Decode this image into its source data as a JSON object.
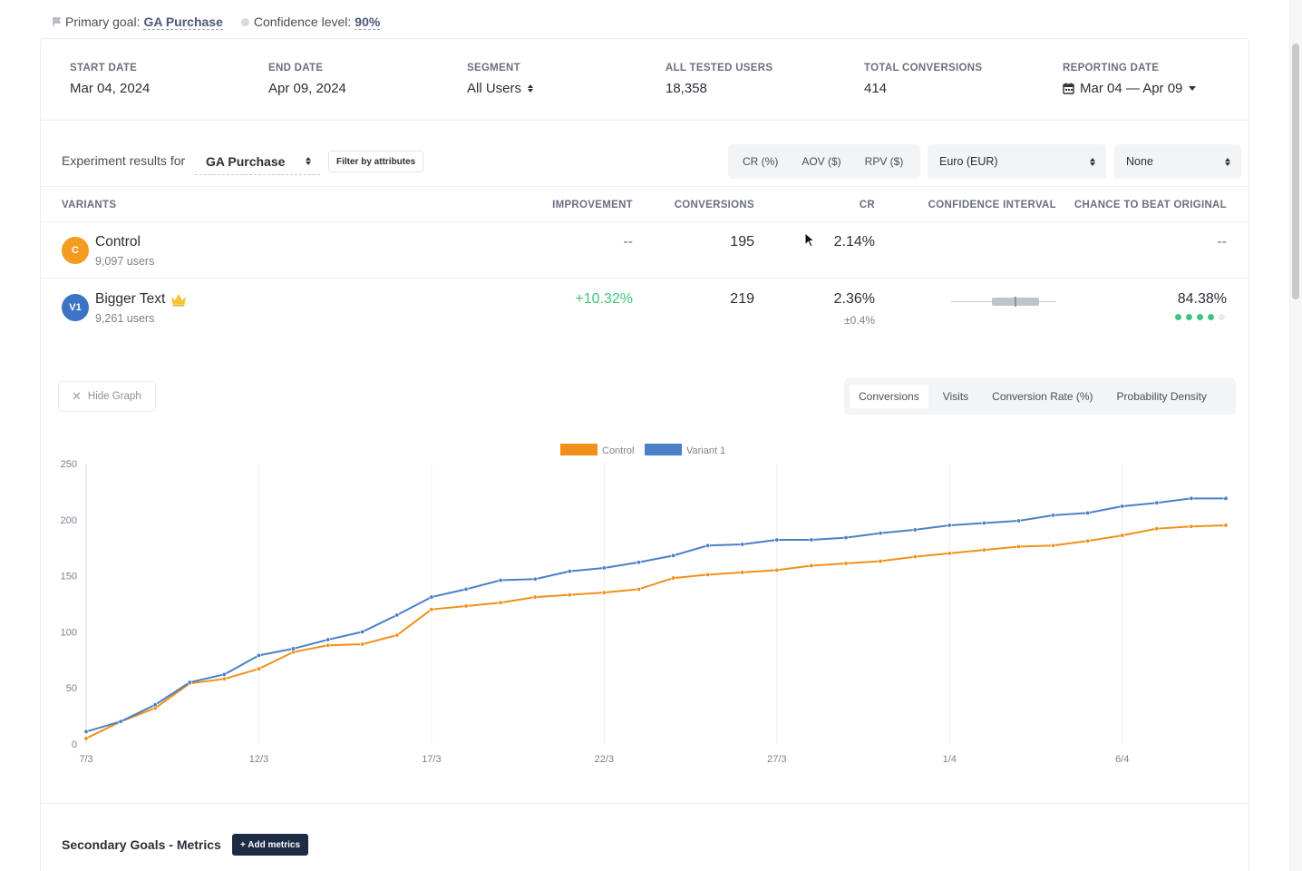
{
  "topbar": {
    "goal_label": "Primary goal:",
    "goal_value": "GA Purchase",
    "confidence_label": "Confidence level:",
    "confidence_value": "90%"
  },
  "summary": {
    "start_label": "START DATE",
    "start_value": "Mar 04, 2024",
    "end_label": "END DATE",
    "end_value": "Apr 09, 2024",
    "segment_label": "SEGMENT",
    "segment_value": "All Users",
    "users_label": "ALL TESTED USERS",
    "users_value": "18,358",
    "conv_label": "TOTAL CONVERSIONS",
    "conv_value": "414",
    "reporting_label": "REPORTING DATE",
    "reporting_value": "Mar 04 — Apr 09"
  },
  "filters": {
    "results_label": "Experiment results for",
    "goal_select": "GA Purchase",
    "filter_button": "Filter by attributes",
    "metric_tabs": [
      "CR (%)",
      "AOV ($)",
      "RPV ($)"
    ],
    "currency": "Euro (EUR)",
    "none_select": "None"
  },
  "table": {
    "headers": {
      "variants": "VARIANTS",
      "improvement": "IMPROVEMENT",
      "conversions": "CONVERSIONS",
      "cr": "CR",
      "ci": "CONFIDENCE INTERVAL",
      "chance": "CHANCE TO BEAT ORIGINAL"
    },
    "rows": [
      {
        "badge": "C",
        "name": "Control",
        "users": "9,097 users",
        "improvement": "--",
        "conversions": "195",
        "cr": "2.14%",
        "chance": "--",
        "badge_color": "#f39c1f"
      },
      {
        "badge": "V1",
        "name": "Bigger Text",
        "users": "9,261 users",
        "improvement": "+10.32%",
        "conversions": "219",
        "cr": "2.36%",
        "cr_ci": "±0.4%",
        "chance": "84.38%",
        "badge_color": "#3d73c4"
      }
    ]
  },
  "graph": {
    "hide_label": "Hide Graph",
    "tabs": [
      "Conversions",
      "Visits",
      "Conversion Rate (%)",
      "Probability Density"
    ],
    "active_tab": "Conversions"
  },
  "chart_data": {
    "type": "line",
    "title": "",
    "xlabel": "",
    "ylabel": "",
    "ylim": [
      0,
      250
    ],
    "yticks": [
      0,
      50,
      100,
      150,
      200,
      250
    ],
    "x_tick_labels": [
      "7/3",
      "12/3",
      "17/3",
      "22/3",
      "27/3",
      "1/4",
      "6/4"
    ],
    "x_tick_indices": [
      0,
      5,
      10,
      15,
      20,
      25,
      30
    ],
    "legend_position": "top-center",
    "series": [
      {
        "name": "Control",
        "color": "#f0901a",
        "values": [
          5,
          20,
          32,
          54,
          58,
          67,
          82,
          88,
          89,
          97,
          120,
          123,
          126,
          131,
          133,
          135,
          138,
          148,
          151,
          153,
          155,
          159,
          161,
          163,
          167,
          170,
          173,
          176,
          177,
          181,
          186,
          192,
          194,
          195
        ]
      },
      {
        "name": "Variant 1",
        "color": "#4b7fc6",
        "values": [
          11,
          20,
          35,
          55,
          62,
          79,
          85,
          93,
          100,
          115,
          131,
          138,
          146,
          147,
          154,
          157,
          162,
          168,
          177,
          178,
          182,
          182,
          184,
          188,
          191,
          195,
          197,
          199,
          204,
          206,
          212,
          215,
          219,
          219
        ]
      }
    ]
  },
  "secondary": {
    "title": "Secondary Goals - Metrics",
    "add_button": "+ Add metrics"
  }
}
